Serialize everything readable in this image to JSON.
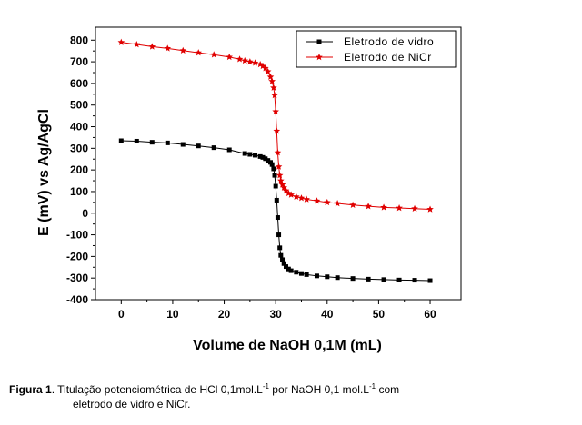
{
  "chart_data": {
    "type": "scatter",
    "xlabel": "Volume de NaOH 0,1M (mL)",
    "ylabel": "E (mV) vs Ag/AgCl",
    "xlim": [
      -5,
      66
    ],
    "ylim": [
      -400,
      860
    ],
    "xticks": [
      0,
      10,
      20,
      30,
      40,
      50,
      60
    ],
    "yticks": [
      -400,
      -300,
      -200,
      -100,
      0,
      100,
      200,
      300,
      400,
      500,
      600,
      700,
      800
    ],
    "legend_placement": "top-right",
    "grid": false,
    "series": [
      {
        "name": "Eletrodo de vidro",
        "color": "#000000",
        "marker": "square",
        "x": [
          0,
          3,
          6,
          9,
          12,
          15,
          18,
          21,
          24,
          25,
          26,
          27,
          27.5,
          28,
          28.5,
          29,
          29.3,
          29.6,
          29.8,
          30,
          30.2,
          30.4,
          30.6,
          30.8,
          31,
          31.3,
          31.6,
          32,
          32.5,
          33,
          34,
          35,
          36,
          38,
          40,
          42,
          45,
          48,
          51,
          54,
          57,
          60
        ],
        "y": [
          335,
          333,
          328,
          325,
          318,
          311,
          303,
          293,
          276,
          272,
          268,
          262,
          258,
          252,
          244,
          235,
          225,
          205,
          175,
          125,
          60,
          -20,
          -100,
          -160,
          -195,
          -215,
          -233,
          -247,
          -258,
          -266,
          -273,
          -279,
          -284,
          -290,
          -294,
          -298,
          -302,
          -305,
          -307,
          -309,
          -310,
          -312
        ]
      },
      {
        "name": "Eletrodo de NiCr",
        "color": "#e00000",
        "marker": "star",
        "x": [
          0,
          3,
          6,
          9,
          12,
          15,
          18,
          21,
          23,
          24,
          25,
          26,
          27,
          27.5,
          28,
          28.5,
          29,
          29.3,
          29.6,
          29.8,
          30,
          30.2,
          30.4,
          30.6,
          30.8,
          31,
          31.3,
          31.6,
          32,
          32.5,
          33,
          34,
          35,
          36,
          38,
          40,
          42,
          45,
          48,
          51,
          54,
          57,
          60
        ],
        "y": [
          790,
          780,
          770,
          762,
          752,
          742,
          733,
          722,
          712,
          705,
          700,
          695,
          688,
          680,
          670,
          655,
          630,
          610,
          580,
          545,
          470,
          380,
          280,
          215,
          175,
          150,
          132,
          118,
          104,
          92,
          85,
          76,
          70,
          64,
          57,
          50,
          45,
          38,
          32,
          27,
          24,
          21,
          18
        ]
      }
    ]
  },
  "caption": {
    "label": "Figura 1",
    "text_part1": ". Titulação potenciométrica de HCl 0,1mol.L",
    "sup1": "-1",
    "text_part2": " por NaOH 0,1 mol.L",
    "sup2": "-1",
    "text_part3": " com",
    "line2": "eletrodo de vidro e NiCr."
  }
}
